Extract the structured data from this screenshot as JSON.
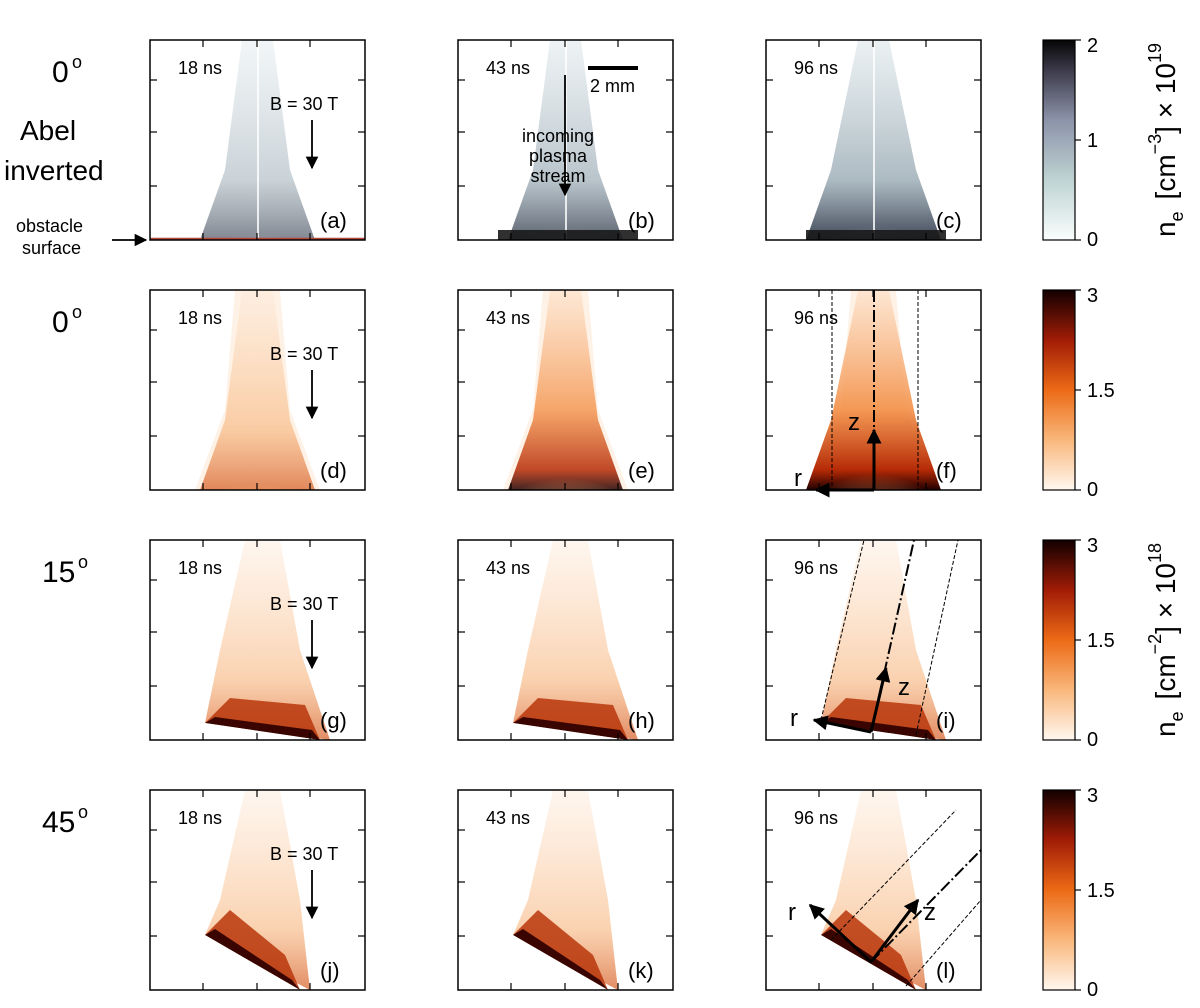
{
  "rows": [
    {
      "angle": "0",
      "deg": "o",
      "note_line1": "Abel",
      "note_line2": "inverted"
    },
    {
      "angle": "0",
      "deg": "o"
    },
    {
      "angle": "15",
      "deg": "o"
    },
    {
      "angle": "45",
      "deg": "o"
    }
  ],
  "panels": [
    {
      "time": "18 ns",
      "letter": "(a)",
      "field": "B = 30 T"
    },
    {
      "time": "43 ns",
      "letter": "(b)"
    },
    {
      "time": "96 ns",
      "letter": "(c)"
    },
    {
      "time": "18 ns",
      "letter": "(d)",
      "field": "B = 30 T"
    },
    {
      "time": "43 ns",
      "letter": "(e)"
    },
    {
      "time": "96 ns",
      "letter": "(f)",
      "r": "r",
      "z": "z"
    },
    {
      "time": "18 ns",
      "letter": "(g)",
      "field": "B = 30 T"
    },
    {
      "time": "43 ns",
      "letter": "(h)"
    },
    {
      "time": "96 ns",
      "letter": "(i)",
      "r": "r",
      "z": "z"
    },
    {
      "time": "18 ns",
      "letter": "(j)",
      "field": "B = 30 T"
    },
    {
      "time": "43 ns",
      "letter": "(k)"
    },
    {
      "time": "96 ns",
      "letter": "(l)",
      "r": "r",
      "z": "z"
    }
  ],
  "annotations": {
    "scale_bar": "2 mm",
    "obstacle_line1": "obstacle",
    "obstacle_line2": "surface",
    "incoming_line1": "incoming",
    "incoming_line2": "plasma",
    "incoming_line3": "stream"
  },
  "colorbars": [
    {
      "max": "2",
      "mid": "1",
      "min": "0",
      "palette": "grey-blue"
    },
    {
      "max": "3",
      "mid": "1.5",
      "min": "0",
      "palette": "orange"
    },
    {
      "max": "3",
      "mid": "1.5",
      "min": "0",
      "palette": "orange"
    },
    {
      "max": "3",
      "mid": "1.5",
      "min": "0",
      "palette": "orange"
    }
  ],
  "units": {
    "vol": {
      "n": "n",
      "sub": "e",
      "open": "[cm",
      "exp": "−3",
      "close": "] × 10",
      "pow": "19"
    },
    "col": {
      "n": "n",
      "sub": "e",
      "open": "[cm",
      "exp": "−2",
      "close": "] × 10",
      "pow": "18"
    }
  },
  "colors": {
    "grey_dark": "#0a0a0a",
    "grey_mid": "#8c9aa6",
    "grey_light": "#f7fbfb",
    "orange_dark": "#1c0000",
    "orange_mid": "#e05a10",
    "orange_light": "#fff6ee"
  }
}
